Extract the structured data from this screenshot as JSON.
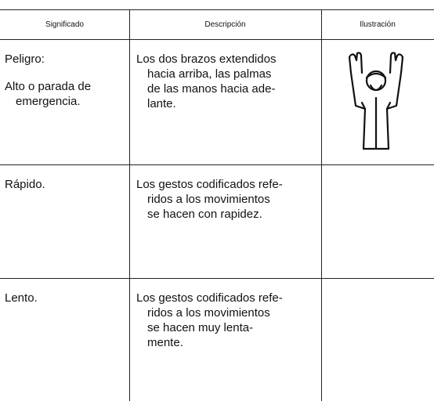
{
  "table": {
    "headers": [
      "Significado",
      "Descripción",
      "Ilustración"
    ],
    "rows": [
      {
        "meaning": [
          "Peligro:",
          "Alto o parada de",
          "emergencia."
        ],
        "description": [
          "Los dos brazos extendidos",
          "hacia arriba, las palmas",
          "de las manos hacia ade-",
          "lante."
        ]
      },
      {
        "meaning": [
          "Rápido."
        ],
        "description": [
          "Los gestos codificados refe-",
          "ridos a los movimientos",
          "se hacen con rapidez."
        ]
      },
      {
        "meaning": [
          "Lento."
        ],
        "description": [
          "Los gestos codificados refe-",
          "ridos a los movimientos",
          "se hacen muy lenta-",
          "mente."
        ]
      }
    ]
  }
}
